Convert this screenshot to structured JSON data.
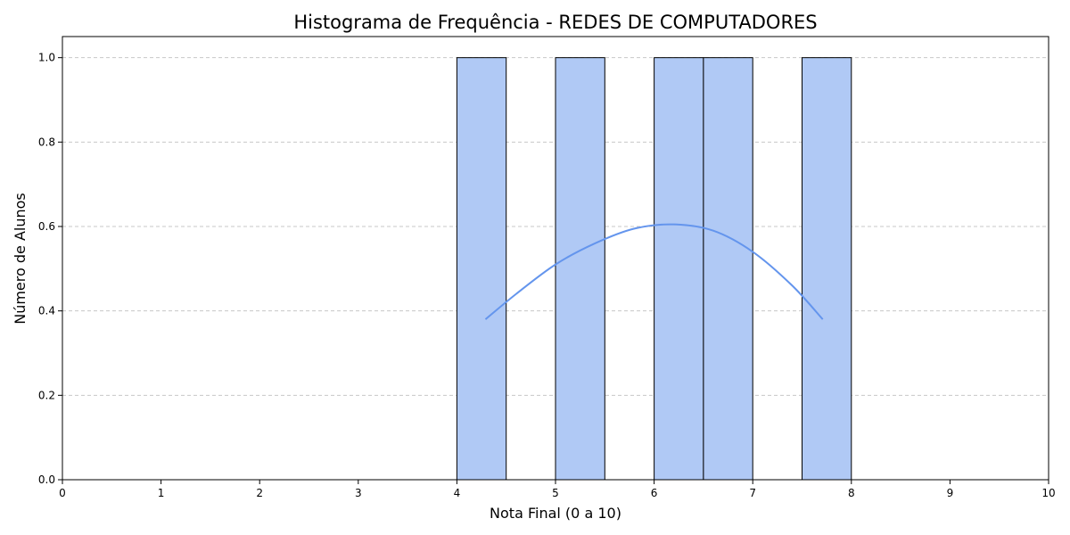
{
  "chart_data": {
    "type": "bar",
    "title": "Histograma de Frequência - REDES DE COMPUTADORES",
    "xlabel": "Nota Final (0 a 10)",
    "ylabel": "Número de Alunos",
    "xlim": [
      0,
      10
    ],
    "ylim": [
      0,
      1.05
    ],
    "xticks": [
      "0",
      "1",
      "2",
      "3",
      "4",
      "5",
      "6",
      "7",
      "8",
      "9",
      "10"
    ],
    "yticks": [
      "0.0",
      "0.2",
      "0.4",
      "0.6",
      "0.8",
      "1.0"
    ],
    "grid": "horizontal dashed",
    "bins": [
      {
        "start": 4.0,
        "end": 4.5,
        "count": 1
      },
      {
        "start": 5.0,
        "end": 5.5,
        "count": 1
      },
      {
        "start": 6.0,
        "end": 6.5,
        "count": 1
      },
      {
        "start": 6.5,
        "end": 7.0,
        "count": 1
      },
      {
        "start": 7.5,
        "end": 8.0,
        "count": 1
      }
    ],
    "density_curve": {
      "x": [
        4.29,
        4.6,
        5.0,
        5.4,
        5.8,
        6.2,
        6.6,
        7.0,
        7.4,
        7.71
      ],
      "y": [
        0.38,
        0.44,
        0.51,
        0.56,
        0.595,
        0.605,
        0.59,
        0.54,
        0.46,
        0.38
      ]
    },
    "colors": {
      "bar_fill": "#b0c9f5",
      "bar_edge": "#000000",
      "curve": "#6495ed",
      "grid": "#c8c8c8"
    }
  }
}
